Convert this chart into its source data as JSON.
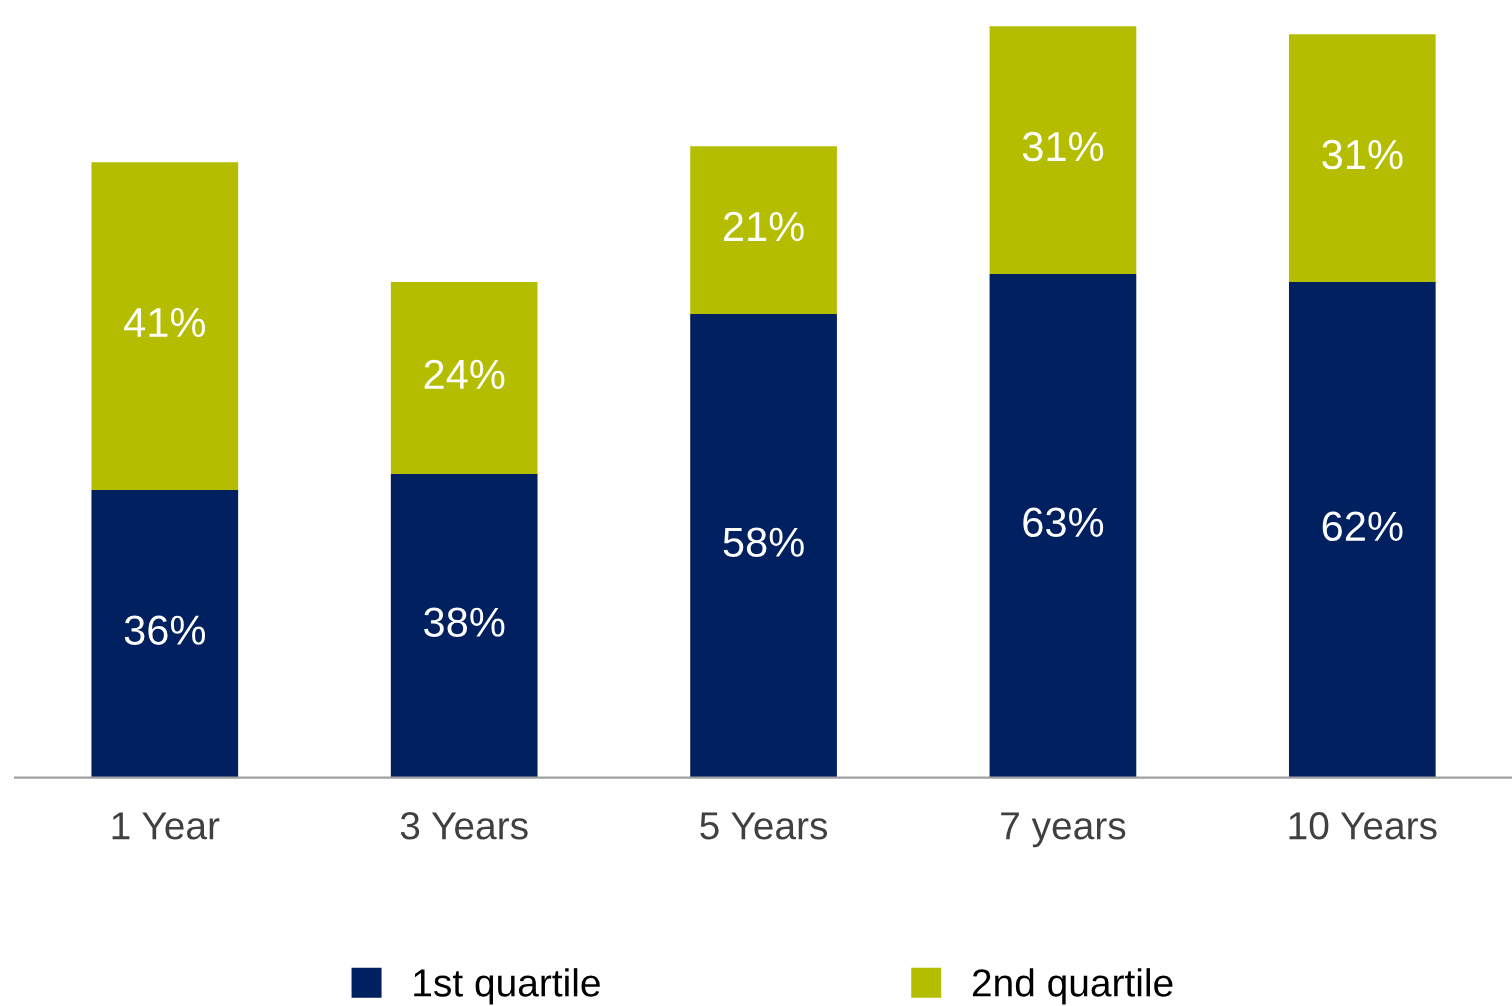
{
  "chart_data": {
    "type": "bar",
    "stacked": true,
    "categories": [
      "1 Year",
      "3 Years",
      "5 Years",
      "7 years",
      "10 Years"
    ],
    "series": [
      {
        "name": "1st quartile",
        "color": "#002060",
        "values": [
          36,
          38,
          58,
          63,
          62
        ],
        "value_labels": [
          "36%",
          "38%",
          "58%",
          "63%",
          "62%"
        ]
      },
      {
        "name": "2nd quartile",
        "color": "#b5bd00",
        "values": [
          41,
          24,
          21,
          31,
          31
        ],
        "value_labels": [
          "41%",
          "24%",
          "21%",
          "31%",
          "31%"
        ]
      }
    ],
    "legend": "bottom",
    "grid": false
  }
}
